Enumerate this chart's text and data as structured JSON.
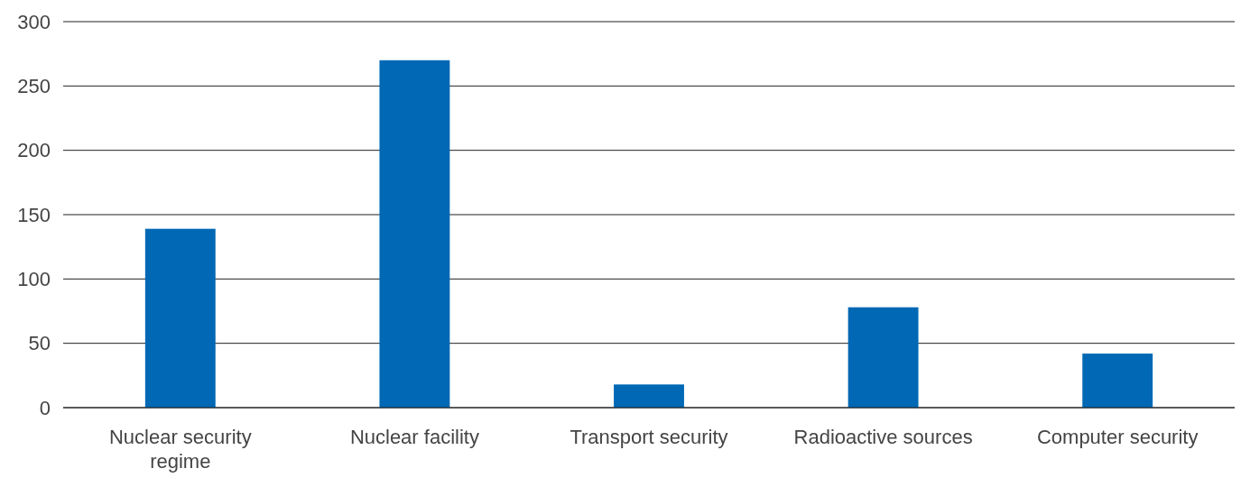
{
  "chart_data": {
    "type": "bar",
    "categories": [
      "Nuclear security regime",
      "Nuclear facility",
      "Transport security",
      "Radioactive sources",
      "Computer security"
    ],
    "values": [
      139,
      270,
      18,
      78,
      42
    ],
    "color": "#0068b4",
    "ylim": [
      0,
      300
    ],
    "yticks": [
      0,
      50,
      100,
      150,
      200,
      250,
      300
    ],
    "grid": "y"
  }
}
